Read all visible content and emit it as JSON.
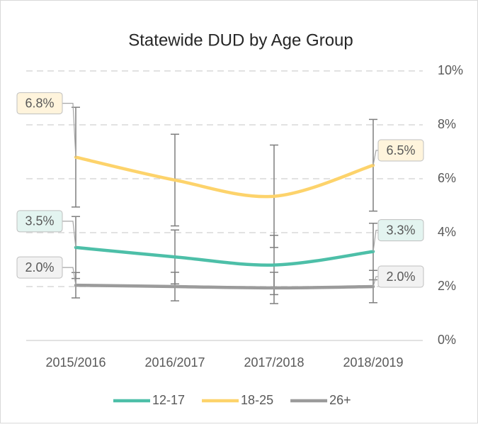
{
  "chart_data": {
    "type": "line",
    "title": "Statewide DUD by Age Group",
    "categories": [
      "2015/2016",
      "2016/2017",
      "2017/2018",
      "2018/2019"
    ],
    "series": [
      {
        "name": "12-17",
        "color": "#4dbfa8",
        "values": [
          3.45,
          3.1,
          2.8,
          3.3
        ],
        "errors": [
          1.15,
          1.0,
          1.1,
          1.05
        ],
        "value_labels": [
          "3.5%",
          null,
          null,
          "3.3%"
        ],
        "label_fill": "#e3f4f0"
      },
      {
        "name": "18-25",
        "color": "#fdd36b",
        "values": [
          6.8,
          5.95,
          5.35,
          6.5
        ],
        "errors": [
          1.85,
          1.7,
          1.9,
          1.7
        ],
        "value_labels": [
          "6.8%",
          null,
          null,
          "6.5%"
        ],
        "label_fill": "#fff4dc"
      },
      {
        "name": "26+",
        "color": "#9b9b9b",
        "values": [
          2.05,
          2.0,
          1.95,
          2.0
        ],
        "errors": [
          0.47,
          0.53,
          0.58,
          0.6
        ],
        "value_labels": [
          "2.0%",
          null,
          null,
          "2.0%"
        ],
        "label_fill": "#f2f2f2"
      }
    ],
    "ylim": [
      0,
      10
    ],
    "yticks": [
      {
        "value": 0,
        "label": "0%"
      },
      {
        "value": 2,
        "label": "2%"
      },
      {
        "value": 4,
        "label": "4%"
      },
      {
        "value": 6,
        "label": "6%"
      },
      {
        "value": 8,
        "label": "8%"
      },
      {
        "value": 10,
        "label": "10%"
      }
    ],
    "grid": true,
    "legend": "bottom"
  }
}
